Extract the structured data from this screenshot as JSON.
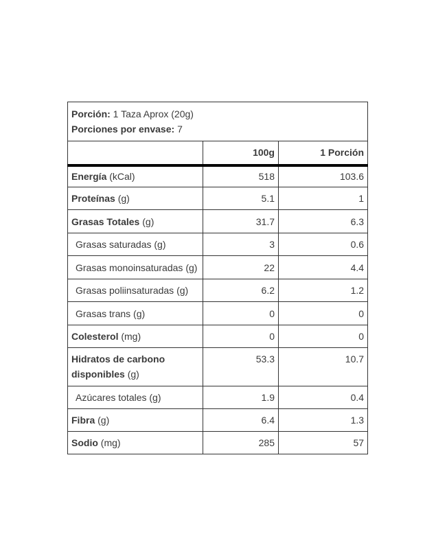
{
  "serving": {
    "portion_label": "Porción:",
    "portion_value": "1 Taza Aprox (20g)",
    "per_container_label": "Porciones por envase:",
    "per_container_value": "7"
  },
  "columns": [
    "",
    "100g",
    "1 Porción"
  ],
  "rows": [
    {
      "name": "Energía",
      "unit": "(kCal)",
      "bold": true,
      "per100": "518",
      "portion": "103.6"
    },
    {
      "name": "Proteínas",
      "unit": "(g)",
      "bold": true,
      "per100": "5.1",
      "portion": "1"
    },
    {
      "name": "Grasas Totales",
      "unit": "(g)",
      "bold": true,
      "per100": "31.7",
      "portion": "6.3"
    },
    {
      "name": "Grasas saturadas",
      "unit": "(g)",
      "bold": false,
      "per100": "3",
      "portion": "0.6"
    },
    {
      "name": "Grasas monoinsaturadas",
      "unit": "(g)",
      "bold": false,
      "per100": "22",
      "portion": "4.4"
    },
    {
      "name": "Grasas poliinsaturadas",
      "unit": "(g)",
      "bold": false,
      "per100": "6.2",
      "portion": "1.2"
    },
    {
      "name": "Grasas trans",
      "unit": "(g)",
      "bold": false,
      "per100": "0",
      "portion": "0"
    },
    {
      "name": "Colesterol",
      "unit": "(mg)",
      "bold": true,
      "per100": "0",
      "portion": "0"
    },
    {
      "name": "Hidratos de carbono disponibles",
      "unit": "(g)",
      "bold": true,
      "per100": "53.3",
      "portion": "10.7"
    },
    {
      "name": "Azúcares totales",
      "unit": "(g)",
      "bold": false,
      "per100": "1.9",
      "portion": "0.4"
    },
    {
      "name": "Fibra",
      "unit": "(g)",
      "bold": true,
      "per100": "6.4",
      "portion": "1.3"
    },
    {
      "name": "Sodio",
      "unit": "(mg)",
      "bold": true,
      "per100": "285",
      "portion": "57"
    }
  ]
}
